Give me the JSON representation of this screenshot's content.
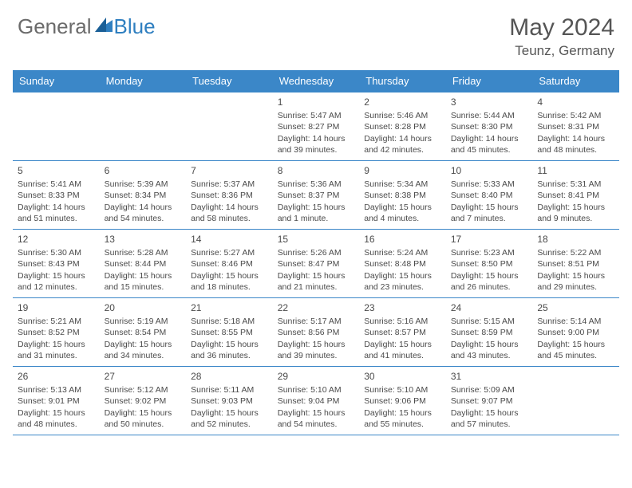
{
  "brand": {
    "text_general": "General",
    "text_blue": "Blue",
    "logo_color": "#2f7fc0"
  },
  "header": {
    "month_title": "May 2024",
    "location": "Teunz, Germany"
  },
  "colors": {
    "header_bg": "#3b87c8",
    "header_text": "#ffffff",
    "border": "#3b87c8",
    "body_text": "#4a4a4a",
    "brand_gray": "#6b6b6b"
  },
  "weekdays": [
    "Sunday",
    "Monday",
    "Tuesday",
    "Wednesday",
    "Thursday",
    "Friday",
    "Saturday"
  ],
  "weeks": [
    [
      null,
      null,
      null,
      {
        "day": "1",
        "sunrise": "Sunrise: 5:47 AM",
        "sunset": "Sunset: 8:27 PM",
        "daylight": "Daylight: 14 hours and 39 minutes."
      },
      {
        "day": "2",
        "sunrise": "Sunrise: 5:46 AM",
        "sunset": "Sunset: 8:28 PM",
        "daylight": "Daylight: 14 hours and 42 minutes."
      },
      {
        "day": "3",
        "sunrise": "Sunrise: 5:44 AM",
        "sunset": "Sunset: 8:30 PM",
        "daylight": "Daylight: 14 hours and 45 minutes."
      },
      {
        "day": "4",
        "sunrise": "Sunrise: 5:42 AM",
        "sunset": "Sunset: 8:31 PM",
        "daylight": "Daylight: 14 hours and 48 minutes."
      }
    ],
    [
      {
        "day": "5",
        "sunrise": "Sunrise: 5:41 AM",
        "sunset": "Sunset: 8:33 PM",
        "daylight": "Daylight: 14 hours and 51 minutes."
      },
      {
        "day": "6",
        "sunrise": "Sunrise: 5:39 AM",
        "sunset": "Sunset: 8:34 PM",
        "daylight": "Daylight: 14 hours and 54 minutes."
      },
      {
        "day": "7",
        "sunrise": "Sunrise: 5:37 AM",
        "sunset": "Sunset: 8:36 PM",
        "daylight": "Daylight: 14 hours and 58 minutes."
      },
      {
        "day": "8",
        "sunrise": "Sunrise: 5:36 AM",
        "sunset": "Sunset: 8:37 PM",
        "daylight": "Daylight: 15 hours and 1 minute."
      },
      {
        "day": "9",
        "sunrise": "Sunrise: 5:34 AM",
        "sunset": "Sunset: 8:38 PM",
        "daylight": "Daylight: 15 hours and 4 minutes."
      },
      {
        "day": "10",
        "sunrise": "Sunrise: 5:33 AM",
        "sunset": "Sunset: 8:40 PM",
        "daylight": "Daylight: 15 hours and 7 minutes."
      },
      {
        "day": "11",
        "sunrise": "Sunrise: 5:31 AM",
        "sunset": "Sunset: 8:41 PM",
        "daylight": "Daylight: 15 hours and 9 minutes."
      }
    ],
    [
      {
        "day": "12",
        "sunrise": "Sunrise: 5:30 AM",
        "sunset": "Sunset: 8:43 PM",
        "daylight": "Daylight: 15 hours and 12 minutes."
      },
      {
        "day": "13",
        "sunrise": "Sunrise: 5:28 AM",
        "sunset": "Sunset: 8:44 PM",
        "daylight": "Daylight: 15 hours and 15 minutes."
      },
      {
        "day": "14",
        "sunrise": "Sunrise: 5:27 AM",
        "sunset": "Sunset: 8:46 PM",
        "daylight": "Daylight: 15 hours and 18 minutes."
      },
      {
        "day": "15",
        "sunrise": "Sunrise: 5:26 AM",
        "sunset": "Sunset: 8:47 PM",
        "daylight": "Daylight: 15 hours and 21 minutes."
      },
      {
        "day": "16",
        "sunrise": "Sunrise: 5:24 AM",
        "sunset": "Sunset: 8:48 PM",
        "daylight": "Daylight: 15 hours and 23 minutes."
      },
      {
        "day": "17",
        "sunrise": "Sunrise: 5:23 AM",
        "sunset": "Sunset: 8:50 PM",
        "daylight": "Daylight: 15 hours and 26 minutes."
      },
      {
        "day": "18",
        "sunrise": "Sunrise: 5:22 AM",
        "sunset": "Sunset: 8:51 PM",
        "daylight": "Daylight: 15 hours and 29 minutes."
      }
    ],
    [
      {
        "day": "19",
        "sunrise": "Sunrise: 5:21 AM",
        "sunset": "Sunset: 8:52 PM",
        "daylight": "Daylight: 15 hours and 31 minutes."
      },
      {
        "day": "20",
        "sunrise": "Sunrise: 5:19 AM",
        "sunset": "Sunset: 8:54 PM",
        "daylight": "Daylight: 15 hours and 34 minutes."
      },
      {
        "day": "21",
        "sunrise": "Sunrise: 5:18 AM",
        "sunset": "Sunset: 8:55 PM",
        "daylight": "Daylight: 15 hours and 36 minutes."
      },
      {
        "day": "22",
        "sunrise": "Sunrise: 5:17 AM",
        "sunset": "Sunset: 8:56 PM",
        "daylight": "Daylight: 15 hours and 39 minutes."
      },
      {
        "day": "23",
        "sunrise": "Sunrise: 5:16 AM",
        "sunset": "Sunset: 8:57 PM",
        "daylight": "Daylight: 15 hours and 41 minutes."
      },
      {
        "day": "24",
        "sunrise": "Sunrise: 5:15 AM",
        "sunset": "Sunset: 8:59 PM",
        "daylight": "Daylight: 15 hours and 43 minutes."
      },
      {
        "day": "25",
        "sunrise": "Sunrise: 5:14 AM",
        "sunset": "Sunset: 9:00 PM",
        "daylight": "Daylight: 15 hours and 45 minutes."
      }
    ],
    [
      {
        "day": "26",
        "sunrise": "Sunrise: 5:13 AM",
        "sunset": "Sunset: 9:01 PM",
        "daylight": "Daylight: 15 hours and 48 minutes."
      },
      {
        "day": "27",
        "sunrise": "Sunrise: 5:12 AM",
        "sunset": "Sunset: 9:02 PM",
        "daylight": "Daylight: 15 hours and 50 minutes."
      },
      {
        "day": "28",
        "sunrise": "Sunrise: 5:11 AM",
        "sunset": "Sunset: 9:03 PM",
        "daylight": "Daylight: 15 hours and 52 minutes."
      },
      {
        "day": "29",
        "sunrise": "Sunrise: 5:10 AM",
        "sunset": "Sunset: 9:04 PM",
        "daylight": "Daylight: 15 hours and 54 minutes."
      },
      {
        "day": "30",
        "sunrise": "Sunrise: 5:10 AM",
        "sunset": "Sunset: 9:06 PM",
        "daylight": "Daylight: 15 hours and 55 minutes."
      },
      {
        "day": "31",
        "sunrise": "Sunrise: 5:09 AM",
        "sunset": "Sunset: 9:07 PM",
        "daylight": "Daylight: 15 hours and 57 minutes."
      },
      null
    ]
  ]
}
